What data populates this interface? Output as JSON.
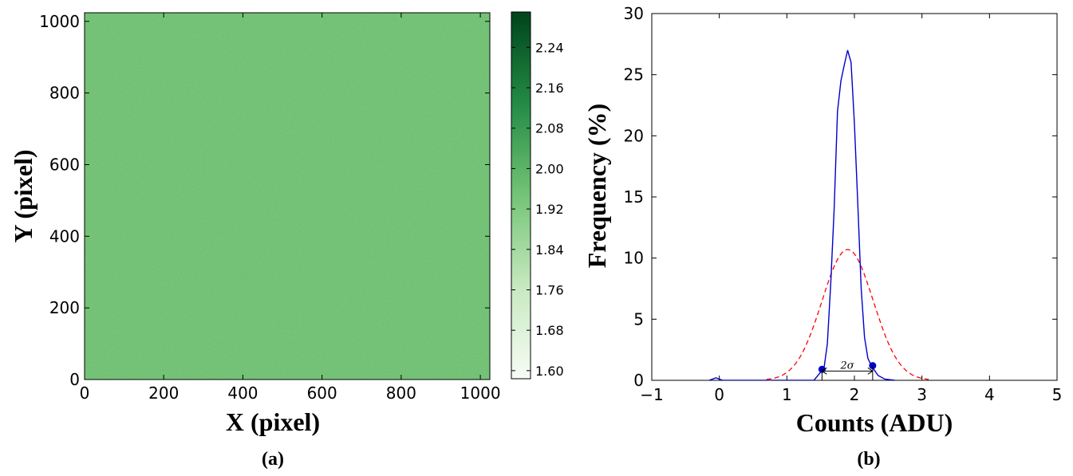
{
  "chart_data": [
    {
      "type": "heatmap",
      "panel_label": "(a)",
      "xlabel": "X (pixel)",
      "ylabel": "Y (pixel)",
      "xlim": [
        0,
        1024
      ],
      "ylim": [
        0,
        1024
      ],
      "xticks": [
        0,
        200,
        400,
        600,
        800,
        1000
      ],
      "yticks": [
        0,
        200,
        400,
        600,
        800,
        1000
      ],
      "colormap": "Greens",
      "colorbar": {
        "range": [
          1.584,
          2.31
        ],
        "ticks": [
          "1.60",
          "1.68",
          "1.76",
          "1.84",
          "1.92",
          "2.00",
          "2.08",
          "2.16",
          "2.24"
        ],
        "color_low": "#f7fcf5",
        "color_high": "#00441b"
      },
      "field_mean": 1.9,
      "field_spread": 0.04,
      "field_color": "#74c476"
    },
    {
      "type": "line",
      "panel_label": "(b)",
      "xlabel": "Counts (ADU)",
      "ylabel": "Frequency (%)",
      "xlim": [
        -1,
        5
      ],
      "ylim": [
        0,
        30
      ],
      "xticks": [
        -1,
        0,
        1,
        2,
        3,
        4,
        5
      ],
      "xtick_labels": [
        "−1",
        "0",
        "1",
        "2",
        "3",
        "4",
        "5"
      ],
      "yticks": [
        0,
        5,
        10,
        15,
        20,
        25,
        30
      ],
      "series": [
        {
          "style": "solid",
          "color": "#0000cc",
          "x": [
            -0.15,
            -0.05,
            0.05,
            1.4,
            1.55,
            1.6,
            1.65,
            1.7,
            1.75,
            1.8,
            1.85,
            1.9,
            1.95,
            2.0,
            2.05,
            2.1,
            2.15,
            2.2,
            2.25,
            2.3,
            2.35,
            2.45,
            2.6
          ],
          "y": [
            0,
            0.2,
            0,
            0,
            1.0,
            3.0,
            8.0,
            14.0,
            22.0,
            24.5,
            25.8,
            27.0,
            26.0,
            21.0,
            14.5,
            7.5,
            3.5,
            1.8,
            1.2,
            0.8,
            0.4,
            0.1,
            0
          ]
        },
        {
          "style": "dashed",
          "color": "#ff0000",
          "gaussian": {
            "mean": 1.9,
            "sigma": 0.38,
            "peak": 10.7,
            "x_from": 0.7,
            "x_to": 3.1
          }
        }
      ],
      "markers": [
        {
          "x": 1.52,
          "y": 0.9,
          "color": "#0000cc"
        },
        {
          "x": 2.27,
          "y": 1.2,
          "color": "#0000cc"
        }
      ],
      "annotation": {
        "text": "2σ",
        "x_from": 1.52,
        "x_to": 2.27,
        "y": 0.5
      }
    }
  ]
}
